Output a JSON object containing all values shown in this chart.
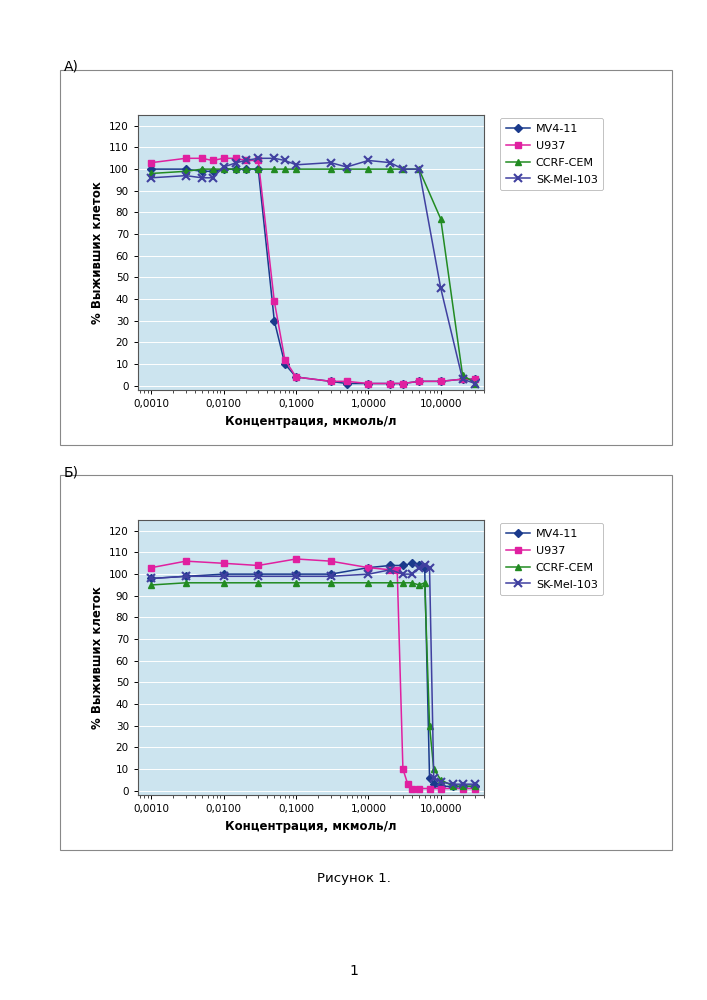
{
  "xlabel": "Концентрация, мкмоль/л",
  "ylabel": "% Выживших клеток",
  "figure_caption": "Рисунок 1.",
  "page_number": "1",
  "panel_A_label": "А)",
  "panel_B_label": "Б)",
  "legend_labels": [
    "MV4-11",
    "U937",
    "CCRF-CEM",
    "SK-Mel-103"
  ],
  "colors": {
    "MV4-11": "#1a3a8c",
    "U937": "#e020a0",
    "CCRF-CEM": "#228B22",
    "SK-Mel-103": "#4040a0"
  },
  "markers": {
    "MV4-11": "D",
    "U937": "s",
    "CCRF-CEM": "^",
    "SK-Mel-103": "x"
  },
  "ylim": [
    -2,
    125
  ],
  "yticks": [
    0,
    10,
    20,
    30,
    40,
    50,
    60,
    70,
    80,
    90,
    100,
    110,
    120
  ],
  "xtick_labels": [
    "0,0010",
    "0,0100",
    "0,1000",
    "1,0000",
    "10,0000"
  ],
  "xtick_values": [
    0.001,
    0.01,
    0.1,
    1.0,
    10.0
  ],
  "background_color": "#cce4ef",
  "plot_A": {
    "MV4-11": {
      "x": [
        0.001,
        0.003,
        0.005,
        0.007,
        0.01,
        0.015,
        0.02,
        0.03,
        0.05,
        0.07,
        0.1,
        0.3,
        0.5,
        1.0,
        2.0,
        3.0,
        5.0,
        10.0,
        20.0,
        30.0
      ],
      "y": [
        100,
        100,
        99,
        99,
        100,
        100,
        100,
        100,
        30,
        10,
        4,
        2,
        1,
        1,
        1,
        1,
        2,
        2,
        3,
        3
      ]
    },
    "U937": {
      "x": [
        0.001,
        0.003,
        0.005,
        0.007,
        0.01,
        0.015,
        0.02,
        0.03,
        0.05,
        0.07,
        0.1,
        0.3,
        0.5,
        1.0,
        2.0,
        3.0,
        5.0,
        10.0,
        20.0,
        30.0
      ],
      "y": [
        103,
        105,
        105,
        104,
        105,
        105,
        104,
        104,
        39,
        12,
        4,
        2,
        2,
        1,
        1,
        1,
        2,
        2,
        3,
        3
      ]
    },
    "CCRF-CEM": {
      "x": [
        0.001,
        0.003,
        0.005,
        0.007,
        0.01,
        0.015,
        0.02,
        0.03,
        0.05,
        0.07,
        0.1,
        0.3,
        0.5,
        1.0,
        2.0,
        3.0,
        5.0,
        10.0,
        20.0,
        30.0
      ],
      "y": [
        98,
        99,
        100,
        100,
        100,
        100,
        100,
        100,
        100,
        100,
        100,
        100,
        100,
        100,
        100,
        100,
        100,
        77,
        5,
        1
      ]
    },
    "SK-Mel-103": {
      "x": [
        0.001,
        0.003,
        0.005,
        0.007,
        0.01,
        0.015,
        0.02,
        0.03,
        0.05,
        0.07,
        0.1,
        0.3,
        0.5,
        1.0,
        2.0,
        3.0,
        5.0,
        10.0,
        20.0,
        30.0
      ],
      "y": [
        96,
        97,
        96,
        96,
        101,
        103,
        104,
        105,
        105,
        104,
        102,
        103,
        101,
        104,
        103,
        100,
        100,
        45,
        3,
        1
      ]
    }
  },
  "plot_B": {
    "MV4-11": {
      "x": [
        0.001,
        0.003,
        0.01,
        0.03,
        0.1,
        0.3,
        1.0,
        2.0,
        3.0,
        4.0,
        5.0,
        6.0,
        7.0,
        8.0,
        10.0,
        15.0,
        20.0,
        30.0
      ],
      "y": [
        98,
        99,
        100,
        100,
        100,
        100,
        103,
        104,
        104,
        105,
        104,
        103,
        6,
        3,
        2,
        2,
        2,
        2
      ]
    },
    "U937": {
      "x": [
        0.001,
        0.003,
        0.01,
        0.03,
        0.1,
        0.3,
        1.0,
        2.0,
        2.5,
        3.0,
        3.5,
        4.0,
        5.0,
        7.0,
        10.0,
        20.0,
        30.0
      ],
      "y": [
        103,
        106,
        105,
        104,
        107,
        106,
        103,
        102,
        102,
        10,
        3,
        1,
        1,
        1,
        1,
        1,
        1
      ]
    },
    "CCRF-CEM": {
      "x": [
        0.001,
        0.003,
        0.01,
        0.03,
        0.1,
        0.3,
        1.0,
        2.0,
        3.0,
        4.0,
        5.0,
        6.0,
        7.0,
        8.0,
        10.0,
        15.0,
        20.0,
        30.0
      ],
      "y": [
        95,
        96,
        96,
        96,
        96,
        96,
        96,
        96,
        96,
        96,
        95,
        96,
        30,
        10,
        5,
        2,
        2,
        2
      ]
    },
    "SK-Mel-103": {
      "x": [
        0.001,
        0.003,
        0.01,
        0.03,
        0.1,
        0.3,
        1.0,
        2.0,
        3.0,
        4.0,
        5.0,
        6.0,
        7.0,
        8.0,
        10.0,
        15.0,
        20.0,
        30.0
      ],
      "y": [
        98,
        99,
        99,
        99,
        99,
        99,
        100,
        102,
        100,
        100,
        103,
        104,
        103,
        6,
        4,
        3,
        3,
        3
      ]
    }
  }
}
